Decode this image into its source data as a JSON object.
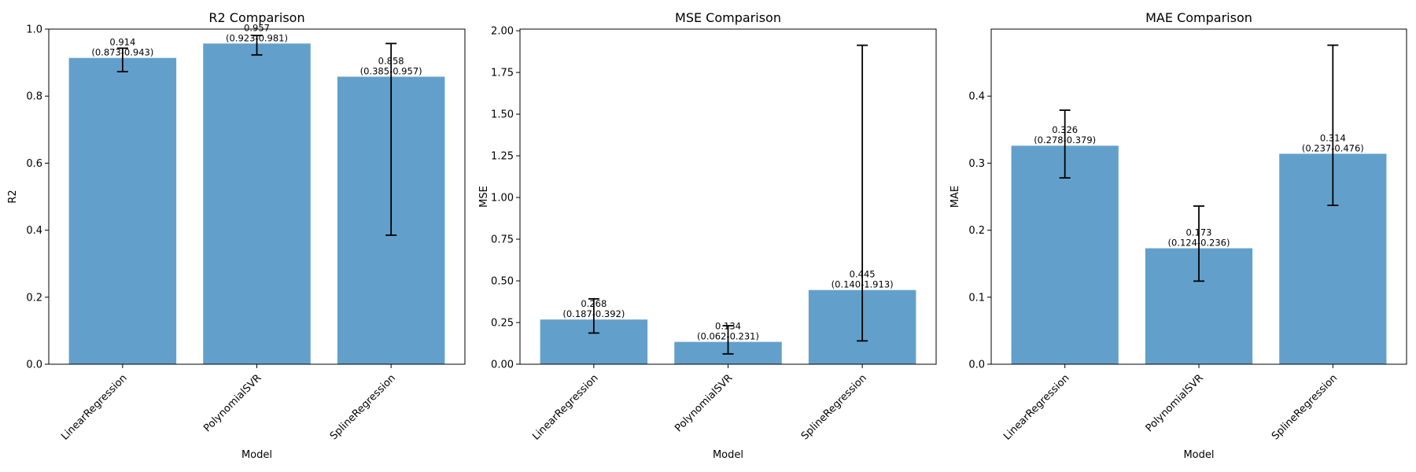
{
  "chart_data": [
    {
      "type": "bar",
      "title": "R2 Comparison",
      "xlabel": "Model",
      "ylabel": "R2",
      "categories": [
        "LinearRegression",
        "PolynomialSVR",
        "SplineRegression"
      ],
      "values": [
        0.914,
        0.957,
        0.858
      ],
      "error_low": [
        0.873,
        0.923,
        0.385
      ],
      "error_high": [
        0.943,
        0.981,
        0.957
      ],
      "value_labels": [
        "0.914",
        "0.957",
        "0.858"
      ],
      "interval_labels": [
        "(0.873-0.943)",
        "(0.923-0.981)",
        "(0.385-0.957)"
      ],
      "ylim": [
        0,
        1.0
      ],
      "yticks": [
        0,
        0.2,
        0.4,
        0.6,
        0.8,
        1.0
      ],
      "ytick_labels": [
        "0.0",
        "0.2",
        "0.4",
        "0.6",
        "0.8",
        "1.0"
      ],
      "bar_color": "#62a0cb",
      "grid": false
    },
    {
      "type": "bar",
      "title": "MSE Comparison",
      "xlabel": "Model",
      "ylabel": "MSE",
      "categories": [
        "LinearRegression",
        "PolynomialSVR",
        "SplineRegression"
      ],
      "values": [
        0.268,
        0.134,
        0.445
      ],
      "error_low": [
        0.187,
        0.062,
        0.14
      ],
      "error_high": [
        0.392,
        0.231,
        1.913
      ],
      "value_labels": [
        "0.268",
        "0.134",
        "0.445"
      ],
      "interval_labels": [
        "(0.187-0.392)",
        "(0.062-0.231)",
        "(0.140-1.913)"
      ],
      "ylim": [
        0,
        2.01
      ],
      "yticks": [
        0,
        0.25,
        0.5,
        0.75,
        1.0,
        1.25,
        1.5,
        1.75,
        2.0
      ],
      "ytick_labels": [
        "0.00",
        "0.25",
        "0.50",
        "0.75",
        "1.00",
        "1.25",
        "1.50",
        "1.75",
        "2.00"
      ],
      "bar_color": "#62a0cb",
      "grid": false
    },
    {
      "type": "bar",
      "title": "MAE Comparison",
      "xlabel": "Model",
      "ylabel": "MAE",
      "categories": [
        "LinearRegression",
        "PolynomialSVR",
        "SplineRegression"
      ],
      "values": [
        0.326,
        0.173,
        0.314
      ],
      "error_low": [
        0.278,
        0.124,
        0.237
      ],
      "error_high": [
        0.379,
        0.236,
        0.476
      ],
      "value_labels": [
        "0.326",
        "0.173",
        "0.314"
      ],
      "interval_labels": [
        "(0.278-0.379)",
        "(0.124-0.236)",
        "(0.237-0.476)"
      ],
      "ylim": [
        0,
        0.5
      ],
      "yticks": [
        0,
        0.1,
        0.2,
        0.3,
        0.4
      ],
      "ytick_labels": [
        "0.0",
        "0.1",
        "0.2",
        "0.3",
        "0.4"
      ],
      "bar_color": "#62a0cb",
      "grid": false
    }
  ]
}
